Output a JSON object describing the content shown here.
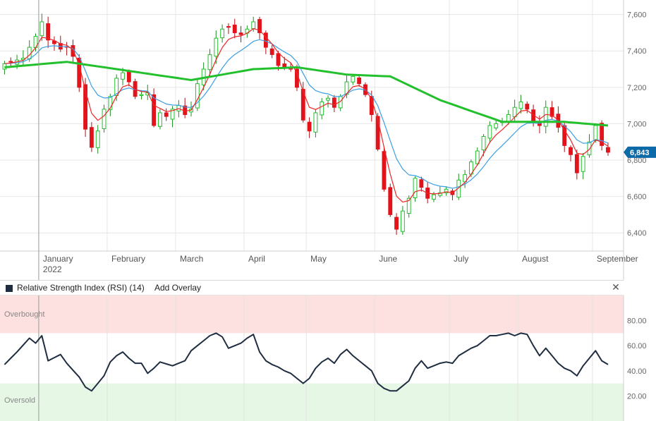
{
  "chart_data": [
    {
      "type": "candlestick",
      "title": "",
      "y_axis_ticks": [
        "6,400",
        "6,600",
        "6,800",
        "7,000",
        "7,200",
        "7,400",
        "7,600"
      ],
      "y_axis_tick_values": [
        6400,
        6600,
        6800,
        7000,
        7200,
        7400,
        7600
      ],
      "ylim": [
        6300,
        7680
      ],
      "x_axis_labels": [
        {
          "label": "January",
          "sub": "2022",
          "bar": 6
        },
        {
          "label": "February",
          "sub": "",
          "bar": 17
        },
        {
          "label": "March",
          "sub": "",
          "bar": 28
        },
        {
          "label": "April",
          "sub": "",
          "bar": 39
        },
        {
          "label": "May",
          "sub": "",
          "bar": 49
        },
        {
          "label": "June",
          "sub": "",
          "bar": 60
        },
        {
          "label": "July",
          "sub": "",
          "bar": 72
        },
        {
          "label": "August",
          "sub": "",
          "bar": 83
        },
        {
          "label": "September",
          "sub": "",
          "bar": 95
        }
      ],
      "last_price_label": "6,843",
      "last_price": 6843,
      "bar_count": 100,
      "key_points_close": [
        [
          0,
          7330
        ],
        [
          3,
          7360
        ],
        [
          5,
          7480
        ],
        [
          6,
          7560
        ],
        [
          7,
          7460
        ],
        [
          8,
          7440
        ],
        [
          9,
          7410
        ],
        [
          10,
          7420
        ],
        [
          11,
          7370
        ],
        [
          12,
          7200
        ],
        [
          13,
          6970
        ],
        [
          14,
          6870
        ],
        [
          15,
          6960
        ],
        [
          16,
          7080
        ],
        [
          17,
          7150
        ],
        [
          18,
          7250
        ],
        [
          19,
          7280
        ],
        [
          20,
          7230
        ],
        [
          21,
          7150
        ],
        [
          22,
          7160
        ],
        [
          23,
          7170
        ],
        [
          24,
          6990
        ],
        [
          25,
          7060
        ],
        [
          26,
          7040
        ],
        [
          27,
          7080
        ],
        [
          28,
          7100
        ],
        [
          29,
          7050
        ],
        [
          30,
          7080
        ],
        [
          31,
          7220
        ],
        [
          32,
          7300
        ],
        [
          33,
          7380
        ],
        [
          34,
          7470
        ],
        [
          35,
          7520
        ],
        [
          36,
          7530
        ],
        [
          37,
          7500
        ],
        [
          38,
          7490
        ],
        [
          39,
          7520
        ],
        [
          40,
          7560
        ],
        [
          41,
          7500
        ],
        [
          42,
          7420
        ],
        [
          43,
          7380
        ],
        [
          44,
          7320
        ],
        [
          45,
          7310
        ],
        [
          46,
          7300
        ],
        [
          47,
          7200
        ],
        [
          48,
          7020
        ],
        [
          49,
          6960
        ],
        [
          50,
          7060
        ],
        [
          51,
          7120
        ],
        [
          52,
          7140
        ],
        [
          53,
          7090
        ],
        [
          54,
          7150
        ],
        [
          55,
          7230
        ],
        [
          56,
          7260
        ],
        [
          57,
          7220
        ],
        [
          58,
          7160
        ],
        [
          59,
          7050
        ],
        [
          60,
          6860
        ],
        [
          61,
          6640
        ],
        [
          62,
          6500
        ],
        [
          63,
          6420
        ],
        [
          64,
          6520
        ],
        [
          65,
          6590
        ],
        [
          66,
          6700
        ],
        [
          67,
          6650
        ],
        [
          68,
          6590
        ],
        [
          69,
          6610
        ],
        [
          70,
          6620
        ],
        [
          71,
          6640
        ],
        [
          72,
          6610
        ],
        [
          73,
          6690
        ],
        [
          74,
          6720
        ],
        [
          75,
          6790
        ],
        [
          76,
          6850
        ],
        [
          77,
          6930
        ],
        [
          78,
          6990
        ],
        [
          79,
          7000
        ],
        [
          80,
          7010
        ],
        [
          81,
          7050
        ],
        [
          82,
          7090
        ],
        [
          83,
          7120
        ],
        [
          84,
          7080
        ],
        [
          85,
          7010
        ],
        [
          86,
          6990
        ],
        [
          87,
          7090
        ],
        [
          88,
          7040
        ],
        [
          89,
          6980
        ],
        [
          90,
          6880
        ],
        [
          91,
          6830
        ],
        [
          92,
          6730
        ],
        [
          93,
          6820
        ],
        [
          94,
          6900
        ],
        [
          95,
          6990
        ],
        [
          96,
          6880
        ],
        [
          97,
          6843
        ]
      ],
      "series": [
        {
          "name": "",
          "type": "moving-average",
          "color": "#ef2424"
        },
        {
          "name": "",
          "type": "moving-average",
          "color": "#3b9fe3"
        },
        {
          "name": "",
          "type": "moving-average",
          "color": "#22c02c"
        }
      ],
      "ma_green_key_points": [
        [
          0,
          7310
        ],
        [
          10,
          7340
        ],
        [
          20,
          7290
        ],
        [
          30,
          7240
        ],
        [
          40,
          7300
        ],
        [
          47,
          7310
        ],
        [
          55,
          7270
        ],
        [
          62,
          7260
        ],
        [
          70,
          7130
        ],
        [
          80,
          7010
        ],
        [
          90,
          7010
        ],
        [
          97,
          6990
        ]
      ],
      "colors": {
        "up": "#22c02c",
        "down": "#e3131b",
        "grid": "#e6e6e6",
        "axis_text": "#666666",
        "price_tag": "#0d6aa8"
      }
    },
    {
      "type": "line",
      "title": "Relative Strength Index (RSI) (14)",
      "y_axis_ticks": [
        "20.00",
        "40.00",
        "60.00",
        "80.00"
      ],
      "y_axis_tick_values": [
        20,
        40,
        60,
        80
      ],
      "ylim": [
        0,
        100
      ],
      "zones": {
        "overbought": {
          "from": 70,
          "to": 100
        },
        "oversold": {
          "from": 0,
          "to": 30
        }
      },
      "series": [
        {
          "name": "RSI (14)",
          "color": "#1f2d40",
          "key_points": [
            [
              0,
              45
            ],
            [
              2,
              55
            ],
            [
              4,
              66
            ],
            [
              5,
              62
            ],
            [
              6,
              68
            ],
            [
              7,
              48
            ],
            [
              9,
              53
            ],
            [
              10,
              46
            ],
            [
              12,
              35
            ],
            [
              13,
              27
            ],
            [
              14,
              24
            ],
            [
              15,
              30
            ],
            [
              16,
              36
            ],
            [
              17,
              47
            ],
            [
              18,
              52
            ],
            [
              19,
              55
            ],
            [
              20,
              50
            ],
            [
              21,
              46
            ],
            [
              22,
              46
            ],
            [
              23,
              38
            ],
            [
              24,
              42
            ],
            [
              25,
              47
            ],
            [
              27,
              44
            ],
            [
              28,
              46
            ],
            [
              29,
              48
            ],
            [
              30,
              56
            ],
            [
              31,
              60
            ],
            [
              32,
              64
            ],
            [
              33,
              68
            ],
            [
              34,
              70
            ],
            [
              35,
              67
            ],
            [
              36,
              58
            ],
            [
              37,
              60
            ],
            [
              38,
              62
            ],
            [
              39,
              66
            ],
            [
              40,
              69
            ],
            [
              41,
              55
            ],
            [
              42,
              48
            ],
            [
              43,
              45
            ],
            [
              44,
              43
            ],
            [
              45,
              40
            ],
            [
              46,
              38
            ],
            [
              47,
              34
            ],
            [
              48,
              30
            ],
            [
              49,
              34
            ],
            [
              50,
              42
            ],
            [
              51,
              47
            ],
            [
              52,
              50
            ],
            [
              53,
              46
            ],
            [
              54,
              53
            ],
            [
              55,
              57
            ],
            [
              56,
              52
            ],
            [
              57,
              48
            ],
            [
              58,
              44
            ],
            [
              59,
              40
            ],
            [
              60,
              30
            ],
            [
              61,
              26
            ],
            [
              62,
              24
            ],
            [
              63,
              24
            ],
            [
              64,
              28
            ],
            [
              65,
              32
            ],
            [
              66,
              42
            ],
            [
              67,
              48
            ],
            [
              68,
              42
            ],
            [
              69,
              44
            ],
            [
              70,
              46
            ],
            [
              71,
              47
            ],
            [
              72,
              46
            ],
            [
              73,
              52
            ],
            [
              74,
              55
            ],
            [
              75,
              58
            ],
            [
              76,
              60
            ],
            [
              77,
              64
            ],
            [
              78,
              68
            ],
            [
              79,
              68
            ],
            [
              80,
              69
            ],
            [
              81,
              70
            ],
            [
              82,
              68
            ],
            [
              83,
              70
            ],
            [
              84,
              69
            ],
            [
              85,
              60
            ],
            [
              86,
              52
            ],
            [
              87,
              58
            ],
            [
              88,
              52
            ],
            [
              89,
              46
            ],
            [
              90,
              42
            ],
            [
              91,
              40
            ],
            [
              92,
              36
            ],
            [
              93,
              44
            ],
            [
              94,
              50
            ],
            [
              95,
              56
            ],
            [
              96,
              48
            ],
            [
              97,
              45
            ]
          ]
        }
      ]
    }
  ],
  "rsi_panel": {
    "title": "Relative Strength Index (RSI) (14)",
    "add_overlay_label": "Add Overlay",
    "close_symbol": "✕",
    "overbought_label": "Overbought",
    "oversold_label": "Oversold",
    "colors": {
      "overbought_fill": "#fde0e0",
      "oversold_fill": "#e6f7e6",
      "line": "#1f2d40",
      "swatch": "#1f2d40"
    }
  }
}
